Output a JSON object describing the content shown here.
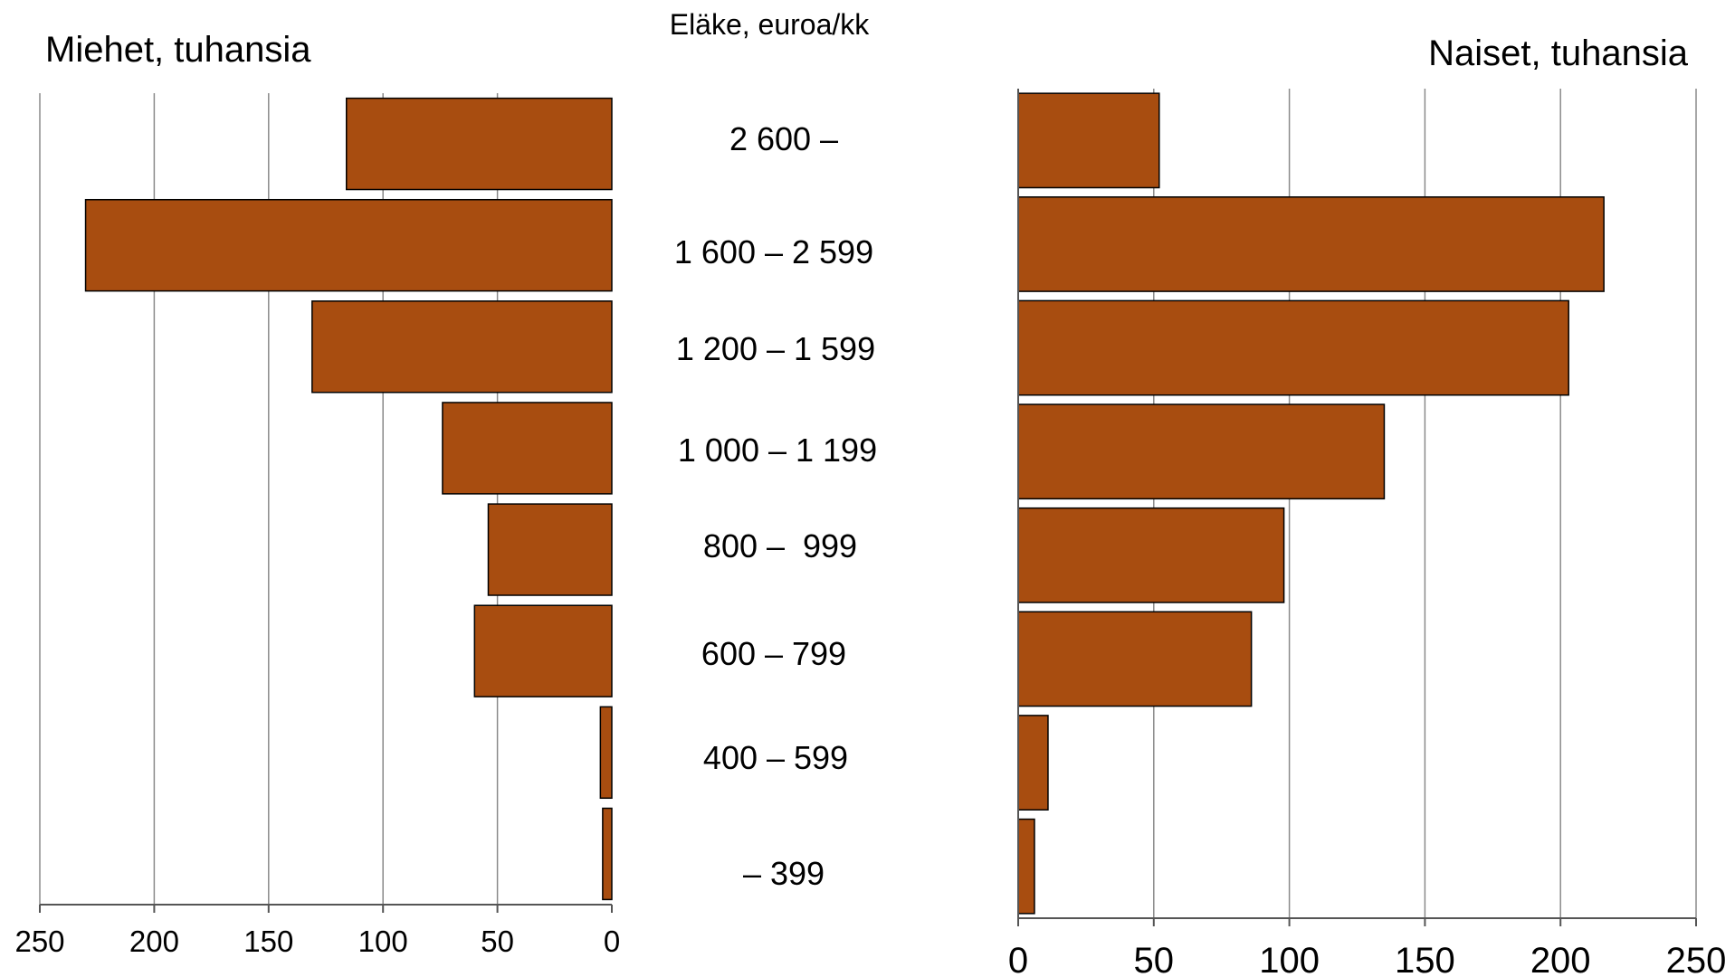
{
  "chart_data": {
    "type": "bar",
    "orientation": "horizontal",
    "layout": "back-to-back population pyramid",
    "center_title": "Eläke, euroa/kk",
    "categories": [
      "2 600 –",
      "1 600 – 2 599",
      "1 200 – 1 599",
      "1 000 – 1 199",
      "800 –  999",
      "600 – 799",
      "400 – 599",
      "– 399"
    ],
    "series": [
      {
        "name": "Miehet",
        "title": "Miehet, tuhansia",
        "values": [
          116,
          230,
          131,
          74,
          54,
          60,
          5,
          4
        ],
        "xlim": [
          0,
          250
        ],
        "ticks": [
          "250",
          "200",
          "150",
          "100",
          "50",
          "0"
        ],
        "direction": "reversed"
      },
      {
        "name": "Naiset",
        "title": "Naiset, tuhansia",
        "values": [
          52,
          216,
          203,
          135,
          98,
          86,
          11,
          6
        ],
        "xlim": [
          0,
          250
        ],
        "ticks": [
          "0",
          "50",
          "100",
          "150",
          "200",
          "250"
        ],
        "direction": "normal"
      }
    ],
    "grid": true,
    "bar_color": "#a84d10",
    "bar_edge_color": "#000000"
  }
}
